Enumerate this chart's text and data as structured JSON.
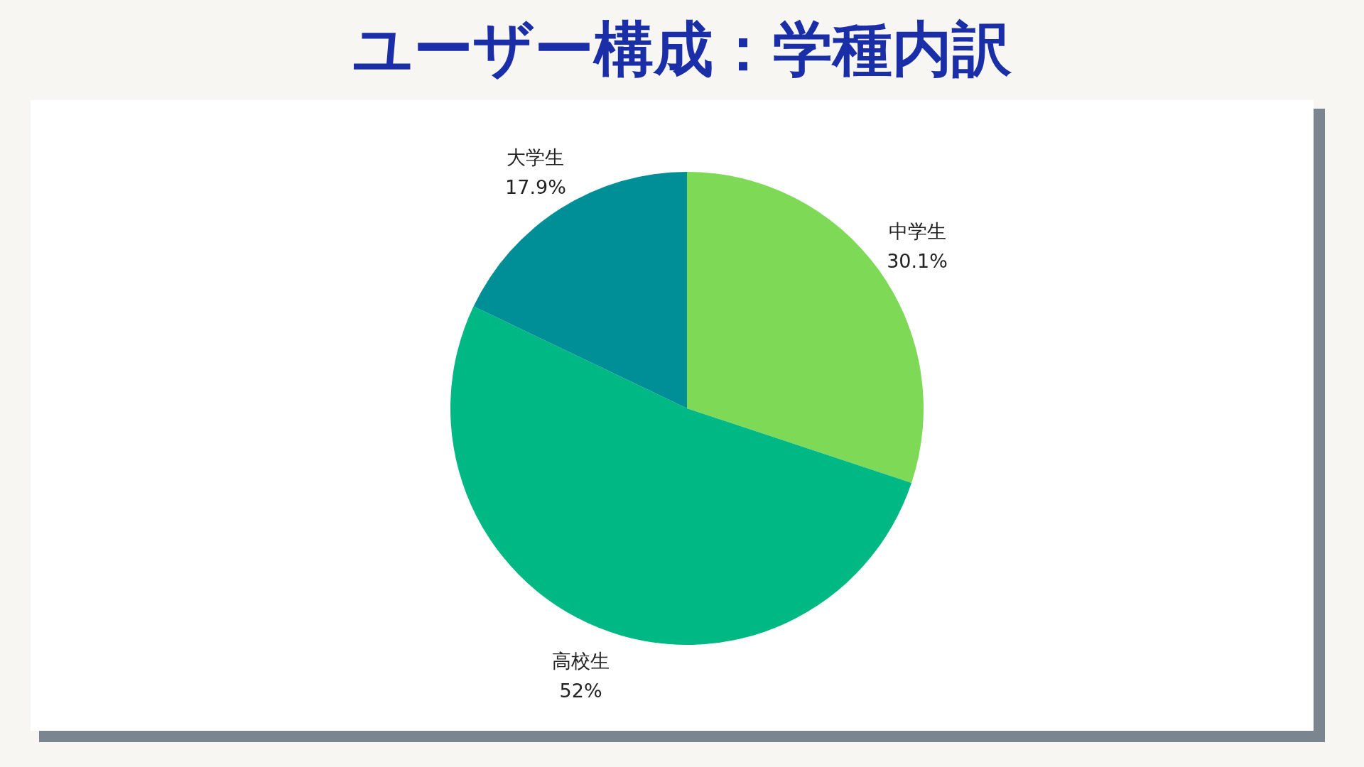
{
  "chart_data": {
    "type": "pie",
    "title": "ユーザー構成：学種内訳",
    "categories": [
      "中学生",
      "高校生",
      "大学生"
    ],
    "values": [
      30.1,
      52,
      17.9
    ],
    "colors": [
      "#7ed957",
      "#00b884",
      "#008f96"
    ],
    "value_labels": [
      "30.1%",
      "52%",
      "17.9%"
    ]
  }
}
